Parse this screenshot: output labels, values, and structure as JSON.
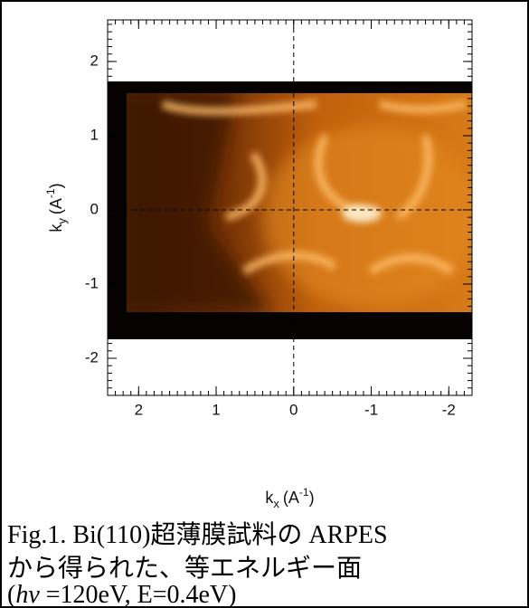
{
  "chart_data": {
    "type": "image",
    "xlabel": {
      "base": "k",
      "sub": "x",
      "unit": "(A",
      "sup": "-1",
      "close": ")"
    },
    "ylabel": {
      "base": "k",
      "sub": "y",
      "unit": "(A",
      "sup": "-1",
      "close": ")"
    },
    "xlim": [
      2.4,
      -2.3
    ],
    "xticks": [
      2,
      1,
      0,
      -1,
      -2
    ],
    "ylim": [
      -2.5,
      2.56
    ],
    "yticks": [
      -2,
      -1,
      0,
      1,
      2
    ],
    "caption": {
      "line1": "Fig.1. Bi(110)超薄膜試料の ARPES",
      "line2": "から得られた、等エネルギー面",
      "line3_open": "(",
      "line3_italic": "hν",
      "line3_rest": " =120eV, E=0.4eV)"
    }
  }
}
